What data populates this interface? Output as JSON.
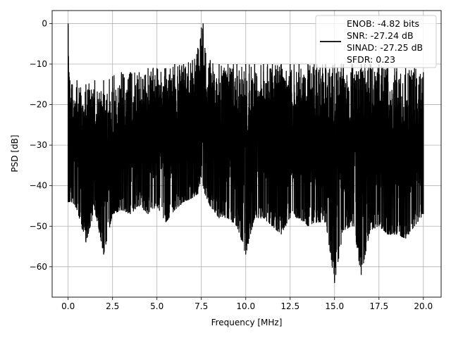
{
  "chart_data": {
    "type": "line",
    "xlabel": "Frequency [MHz]",
    "ylabel": "PSD [dB]",
    "xlim": [
      -0.9,
      21.0
    ],
    "ylim": [
      -67.5,
      3.2
    ],
    "x_ticks": [
      0.0,
      2.5,
      5.0,
      7.5,
      10.0,
      12.5,
      15.0,
      17.5,
      20.0
    ],
    "x_tick_labels": [
      "0.0",
      "2.5",
      "5.0",
      "7.5",
      "10.0",
      "12.5",
      "15.0",
      "17.5",
      "20.0"
    ],
    "y_ticks": [
      0,
      -10,
      -20,
      -30,
      -40,
      -50,
      -60
    ],
    "y_tick_labels": [
      "0",
      "−10",
      "−20",
      "−30",
      "−40",
      "−50",
      "−60"
    ],
    "grid": true,
    "line_color": "#000000",
    "legend": {
      "placement": "top-right",
      "entries": [
        "ENOB: -4.82 bits",
        "SNR: -27.24 dB",
        "SINAD: -27.25 dB",
        "SFDR: 0.23"
      ]
    },
    "series": [
      {
        "x": [
          0.0,
          0.02,
          0.05,
          0.1,
          0.2,
          0.5,
          1.0,
          1.5,
          2.0,
          2.5,
          3.0,
          3.5,
          4.0,
          4.5,
          5.0,
          5.5,
          6.0,
          6.5,
          7.0,
          7.3,
          7.5,
          7.6,
          7.7,
          8.0,
          8.5,
          9.0,
          9.5,
          10.0,
          10.5,
          11.0,
          11.5,
          12.0,
          12.5,
          13.0,
          13.5,
          14.0,
          14.5,
          15.0,
          15.5,
          16.0,
          16.5,
          17.0,
          17.5,
          18.0,
          18.5,
          19.0,
          19.5,
          20.0
        ],
        "y_upper": [
          0,
          -8,
          -12,
          -14,
          -15,
          -14,
          -15,
          -14,
          -14,
          -13,
          -12,
          -12,
          -12,
          -11,
          -11,
          -11,
          -10,
          -10,
          -9,
          -6,
          -1,
          0,
          -6,
          -9,
          -10,
          -10,
          -10,
          -10,
          -10,
          -10,
          -10,
          -10,
          -10,
          -10,
          -10,
          -10,
          -10,
          -10,
          -10,
          -10,
          -10,
          -10,
          -10,
          -11,
          -11,
          -11,
          -11,
          -12
        ],
        "y_lower": [
          -44,
          -44,
          -44,
          -44,
          -44,
          -46,
          -54,
          -46,
          -57,
          -47,
          -46,
          -47,
          -45,
          -47,
          -45,
          -49,
          -46,
          -44,
          -43,
          -42,
          -38,
          -40,
          -42,
          -45,
          -48,
          -48,
          -50,
          -57,
          -48,
          -48,
          -50,
          -52,
          -48,
          -48,
          -50,
          -49,
          -49,
          -64,
          -51,
          -50,
          -62,
          -51,
          -50,
          -52,
          -52,
          -53,
          -50,
          -47
        ]
      }
    ]
  }
}
